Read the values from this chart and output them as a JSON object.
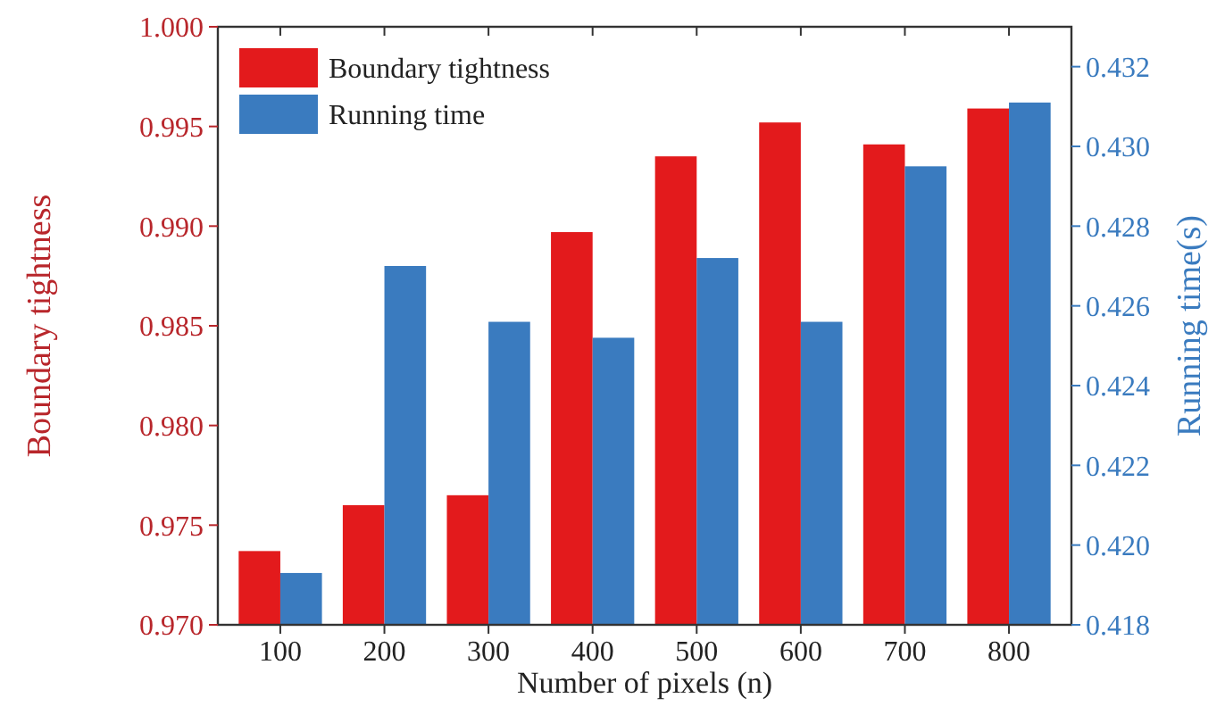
{
  "chart_data": {
    "type": "bar",
    "xlabel": "Number of pixels (n)",
    "ylabel": "Boundary tightness",
    "y2label": "Running time(s)",
    "categories": [
      "100",
      "200",
      "300",
      "400",
      "500",
      "600",
      "700",
      "800"
    ],
    "series": [
      {
        "name": "Boundary tightness",
        "color": "#e31a1c",
        "values": [
          0.9737,
          0.976,
          0.9765,
          0.9897,
          0.9935,
          0.9952,
          0.9941,
          0.9959
        ]
      },
      {
        "name": "Running time",
        "color": "#3a7bbf",
        "axis": "y2",
        "values": [
          0.4193,
          0.427,
          0.4256,
          0.4252,
          0.4272,
          0.4256,
          0.4295,
          0.4311
        ]
      }
    ],
    "ylim": [
      0.97,
      1.0
    ],
    "yticks": [
      {
        "value": 0.97,
        "label": "0.970"
      },
      {
        "value": 0.975,
        "label": "0.975"
      },
      {
        "value": 0.98,
        "label": "0.980"
      },
      {
        "value": 0.985,
        "label": "0.985"
      },
      {
        "value": 0.99,
        "label": "0.990"
      },
      {
        "value": 0.995,
        "label": "0.995"
      },
      {
        "value": 1.0,
        "label": "1.000"
      }
    ],
    "y2lim": [
      0.418,
      0.433
    ],
    "y2ticks": [
      {
        "value": 0.418,
        "label": "0.418"
      },
      {
        "value": 0.42,
        "label": "0.420"
      },
      {
        "value": 0.422,
        "label": "0.422"
      },
      {
        "value": 0.424,
        "label": "0.424"
      },
      {
        "value": 0.426,
        "label": "0.426"
      },
      {
        "value": 0.428,
        "label": "0.428"
      },
      {
        "value": 0.43,
        "label": "0.430"
      },
      {
        "value": 0.432,
        "label": "0.432"
      }
    ],
    "legend": "top left",
    "grid": false
  }
}
